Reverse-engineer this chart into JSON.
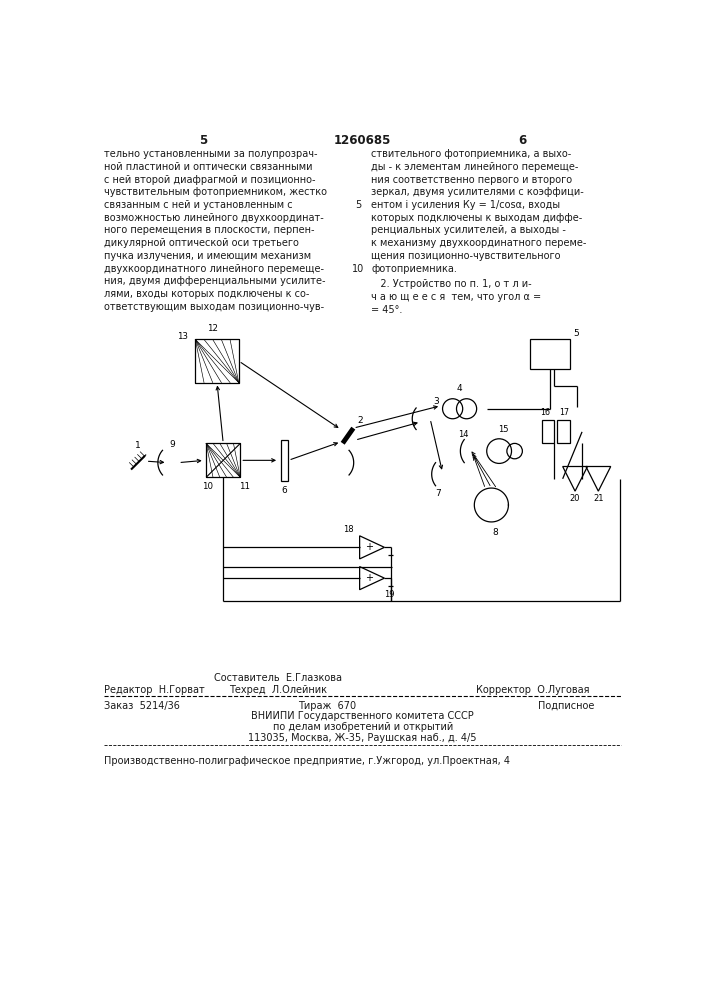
{
  "page_number_left": "5",
  "page_number_center": "1260685",
  "page_number_right": "6",
  "left_column_text": [
    "тельно установленными за полупрозрач-",
    "ной пластиной и оптически связанными",
    "с ней второй диафрагмой и позиционно-",
    "чувствительным фотоприемником, жестко",
    "связанным с ней и установленным с",
    "возможностью линейного двухкоординат-",
    "ного перемещения в плоскости, перпен-",
    "дикулярной оптической оси третьего",
    "пучка излучения, и имеющим механизм",
    "двухкоординатного линейного перемеще-",
    "ния, двумя дифференциальными усилите-",
    "лями, входы которых подключены к со-",
    "ответствующим выходам позиционно-чув-"
  ],
  "right_column_text": [
    "ствительного фотоприемника, а выхо-",
    "ды - к элементам линейного перемеще-",
    "ния соответственно первого и второго",
    "зеркал, двумя усилителями с коэффици-",
    "ентом i усиления Ку = 1/cosα, входы",
    "которых подключены к выходам диффе-",
    "ренциальных усилителей, а выходы -",
    "к механизму двухкоординатного переме-",
    "щения позиционно-чувствительного",
    "фотоприемника."
  ],
  "claim2_text": [
    "   2. Устройство по п. 1, о т л и-",
    "ч а ю щ е е с я  тем, что угол α =",
    "= 45°."
  ],
  "footer_editor": "Редактор  Н.Горват",
  "footer_composer": "Составитель  Е.Глазкова",
  "footer_corrector": "Корректор  О.Луговая",
  "footer_techred": "Техред  Л.Олейник",
  "footer_order": "Заказ  5214/36",
  "footer_tirazh": "Тираж  670",
  "footer_podpisnoe": "Подписное",
  "footer_vniiipi": "ВНИИПИ Государственного комитета СССР",
  "footer_po_delam": "по делам изобретений и открытий",
  "footer_address": "113035, Москва, Ж-35, Раушская наб., д. 4/5",
  "footer_factory": "Производственно-полиграфическое предприятие, г.Ужгород, ул.Проектная, 4",
  "bg_color": "#ffffff",
  "text_color": "#1a1a1a"
}
